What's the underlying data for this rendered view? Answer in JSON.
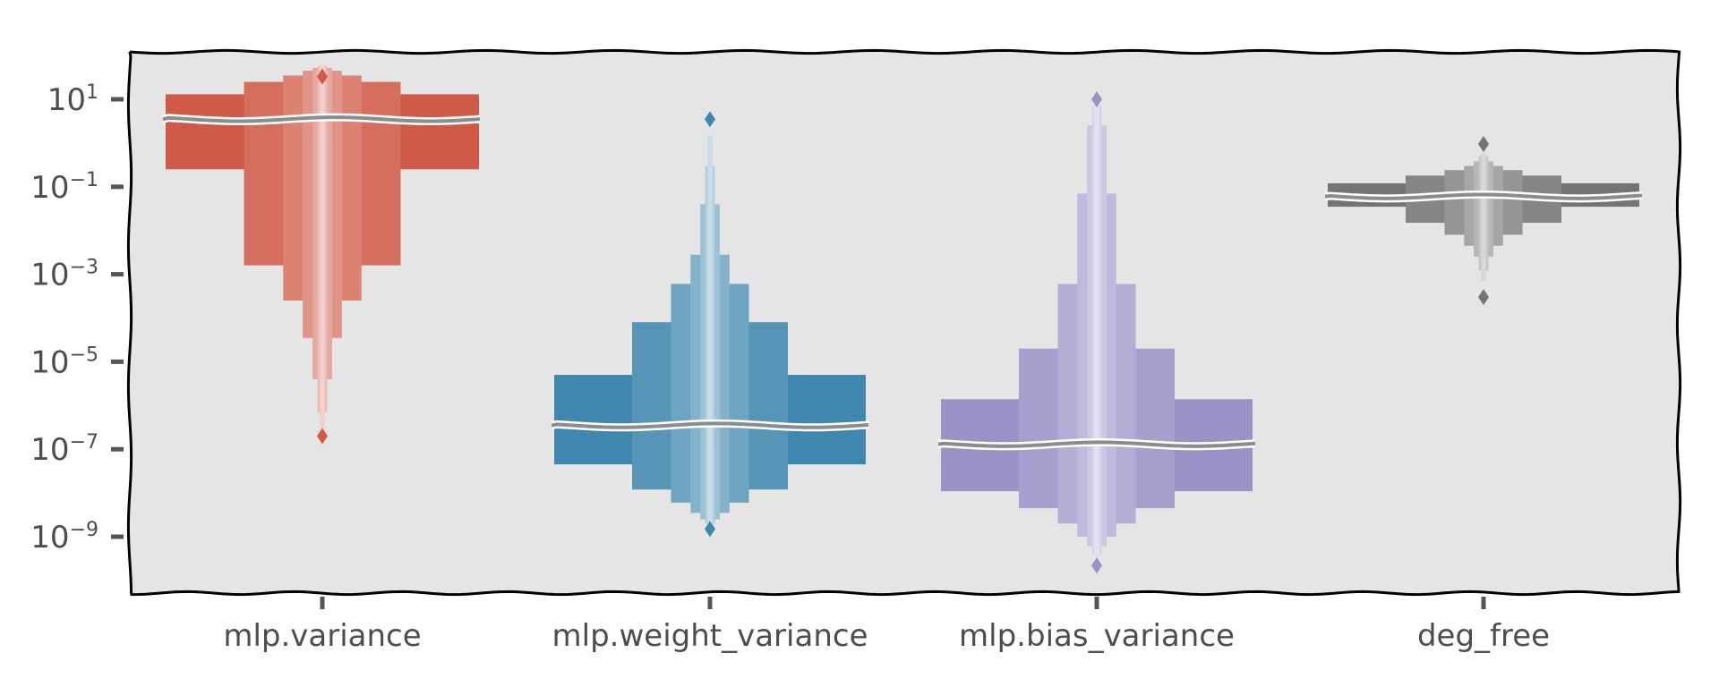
{
  "chart_data": {
    "type": "boxen",
    "title": "",
    "xlabel": "",
    "ylabel": "",
    "yscale": "log",
    "ylim": [
      1e-10,
      100.0
    ],
    "grid": false,
    "background": "#e5e5e5",
    "y_ticks": [
      {
        "value": 10,
        "base": "10",
        "exp": "1"
      },
      {
        "value": 0.1,
        "base": "10",
        "exp": "−1"
      },
      {
        "value": 0.001,
        "base": "10",
        "exp": "−3"
      },
      {
        "value": 1e-05,
        "base": "10",
        "exp": "−5"
      },
      {
        "value": 1e-07,
        "base": "10",
        "exp": "−7"
      },
      {
        "value": 1e-09,
        "base": "10",
        "exp": "−9"
      }
    ],
    "categories": [
      "mlp.variance",
      "mlp.weight_variance",
      "mlp.bias_variance",
      "deg_free"
    ],
    "series": [
      {
        "category": "mlp.variance",
        "color": "#d05a47",
        "median": 3.5,
        "boxes": [
          [
            0.25,
            13
          ],
          [
            0.0016,
            25
          ],
          [
            0.00025,
            35
          ],
          [
            3.5e-05,
            45
          ],
          [
            4e-06,
            52
          ],
          [
            7e-07,
            58
          ],
          [
            1.6e-07,
            62
          ]
        ],
        "outliers": [
          33,
          2e-07
        ]
      },
      {
        "category": "mlp.weight_variance",
        "color": "#3f87ae",
        "median": 3.5e-07,
        "boxes": [
          [
            4.5e-08,
            5e-06
          ],
          [
            1.2e-08,
            8e-05
          ],
          [
            6e-09,
            0.0006
          ],
          [
            3.5e-09,
            0.0028
          ],
          [
            2.5e-09,
            0.04
          ],
          [
            2e-09,
            0.3
          ],
          [
            1.8e-09,
            1.5
          ]
        ],
        "outliers": [
          3.5,
          1.5e-09
        ]
      },
      {
        "category": "mlp.bias_variance",
        "color": "#9b93c8",
        "median": 1.3e-07,
        "boxes": [
          [
            1.1e-08,
            1.4e-06
          ],
          [
            4.5e-09,
            2e-05
          ],
          [
            2e-09,
            0.0006
          ],
          [
            1e-09,
            0.07
          ],
          [
            6e-10,
            2.5
          ],
          [
            4e-10,
            7
          ],
          [
            3e-10,
            9
          ]
        ],
        "outliers": [
          10,
          2.2e-10
        ]
      },
      {
        "category": "deg_free",
        "color": "#747474",
        "median": 0.06,
        "boxes": [
          [
            0.035,
            0.12
          ],
          [
            0.015,
            0.18
          ],
          [
            0.008,
            0.24
          ],
          [
            0.0045,
            0.3
          ],
          [
            0.0025,
            0.38
          ],
          [
            0.0012,
            0.5
          ],
          [
            0.0007,
            0.6
          ]
        ],
        "outliers": [
          0.95,
          0.0003
        ]
      }
    ]
  }
}
